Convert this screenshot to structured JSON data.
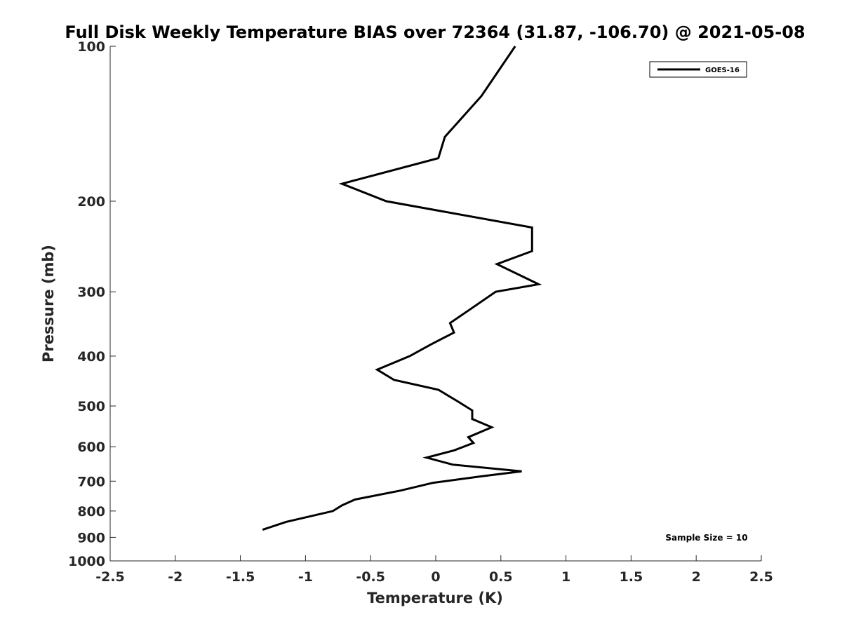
{
  "chart_data": {
    "type": "line",
    "title": "Full Disk Weekly Temperature BIAS over 72364 (31.87, -106.70) @ 2021-05-08",
    "xlabel": "Temperature (K)",
    "ylabel": "Pressure (mb)",
    "xlim": [
      -2.5,
      2.5
    ],
    "ylim": [
      100,
      1000
    ],
    "yscale": "log",
    "y_reversed": true,
    "grid": false,
    "legend_position": "top-right",
    "x_ticks": [
      -2.5,
      -2,
      -1.5,
      -1,
      -0.5,
      0,
      0.5,
      1,
      1.5,
      2,
      2.5
    ],
    "x_tick_labels": [
      "-2.5",
      "-2",
      "-1.5",
      "-1",
      "-0.5",
      "0",
      "0.5",
      "1",
      "1.5",
      "2",
      "2.5"
    ],
    "y_ticks": [
      100,
      200,
      300,
      400,
      500,
      600,
      700,
      800,
      900,
      1000
    ],
    "y_tick_labels": [
      "100",
      "200",
      "300",
      "400",
      "500",
      "600",
      "700",
      "800",
      "900",
      "1000"
    ],
    "series": [
      {
        "name": "GOES-16",
        "color": "#000000",
        "x": [
          0.61,
          0.35,
          0.07,
          0.02,
          -0.72,
          -0.38,
          0.74,
          0.74,
          0.47,
          0.79,
          0.46,
          0.26,
          0.11,
          0.14,
          -0.04,
          -0.2,
          -0.45,
          -0.32,
          0.02,
          0.17,
          0.28,
          0.28,
          0.43,
          0.25,
          0.29,
          0.14,
          -0.07,
          0.13,
          0.66,
          0.35,
          -0.02,
          -0.27,
          -0.62,
          -0.72,
          -0.79,
          -1.15,
          -1.33
        ],
        "y": [
          100,
          125,
          150,
          165,
          185,
          200,
          225,
          250,
          265,
          290,
          300,
          325,
          345,
          360,
          380,
          400,
          425,
          445,
          465,
          490,
          510,
          530,
          550,
          575,
          590,
          610,
          630,
          650,
          670,
          685,
          705,
          730,
          760,
          780,
          800,
          840,
          870
        ]
      }
    ],
    "legend": [
      "GOES-16"
    ],
    "annotation": "Sample Size = 10"
  }
}
